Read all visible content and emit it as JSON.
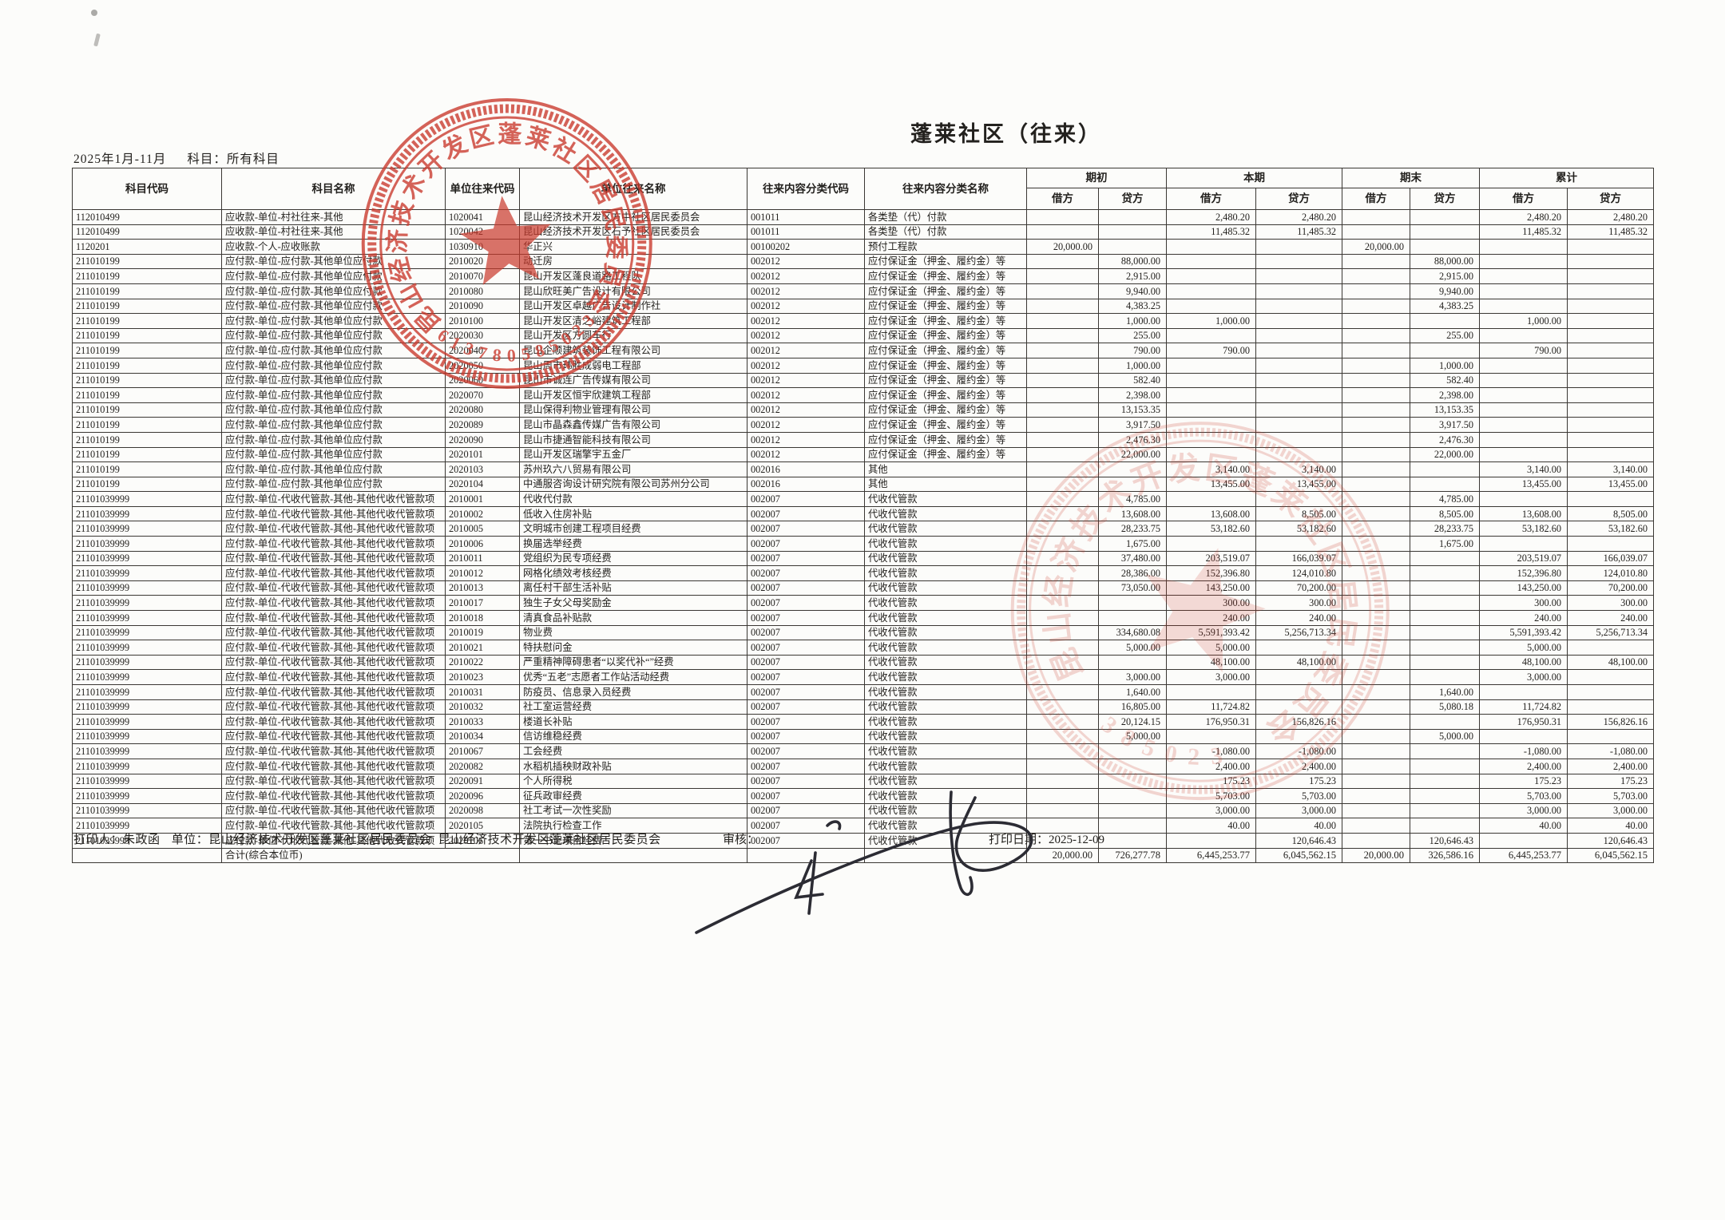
{
  "page": {
    "title": "蓬莱社区（往来）",
    "period": "2025年1月-11月",
    "subject_filter": "科目：所有科目"
  },
  "table": {
    "headers": {
      "static": [
        "科目代码",
        "科目名称",
        "单位往来代码",
        "单位往来名称",
        "往来内容分类代码",
        "往来内容分类名称"
      ],
      "groups": [
        {
          "label": "期初"
        },
        {
          "label": "本期"
        },
        {
          "label": "期末"
        },
        {
          "label": "累计"
        }
      ],
      "sub_debit": "借方",
      "sub_credit": "贷方"
    },
    "col_keys": [
      "subject-code",
      "subject-name",
      "unit-code",
      "unit-name",
      "class-code",
      "class-name",
      "opening-debit",
      "opening-credit",
      "current-debit",
      "current-credit",
      "ending-debit",
      "ending-credit",
      "cumulative-debit",
      "cumulative-credit"
    ],
    "rows": [
      [
        "112010499",
        "应收款-单位-村社往来-其他",
        "1020041",
        "昆山经济技术开发区方中社区居民委员会",
        "001011",
        "各类垫（代）付款",
        "",
        "",
        "2,480.20",
        "2,480.20",
        "",
        "",
        "2,480.20",
        "2,480.20"
      ],
      [
        "112010499",
        "应收款-单位-村社往来-其他",
        "1020042",
        "昆山经济技术开发区石予社区居民委员会",
        "001011",
        "各类垫（代）付款",
        "",
        "",
        "11,485.32",
        "11,485.32",
        "",
        "",
        "11,485.32",
        "11,485.32"
      ],
      [
        "1120201",
        "应收款-个人-应收账款",
        "1030910",
        "华正兴",
        "00100202",
        "预付工程款",
        "20,000.00",
        "",
        "",
        "",
        "20,000.00",
        "",
        "",
        ""
      ],
      [
        "211010199",
        "应付款-单位-应付款-其他单位应付款",
        "2010020",
        "动迁房",
        "002012",
        "应付保证金（押金、履约金）等",
        "",
        "88,000.00",
        "",
        "",
        "",
        "88,000.00",
        "",
        ""
      ],
      [
        "211010199",
        "应付款-单位-应付款-其他单位应付款",
        "2010070",
        "昆山开发区蓬良道路工程队",
        "002012",
        "应付保证金（押金、履约金）等",
        "",
        "2,915.00",
        "",
        "",
        "",
        "2,915.00",
        "",
        ""
      ],
      [
        "211010199",
        "应付款-单位-应付款-其他单位应付款",
        "2010080",
        "昆山欣旺美广告设计有限公司",
        "002012",
        "应付保证金（押金、履约金）等",
        "",
        "9,940.00",
        "",
        "",
        "",
        "9,940.00",
        "",
        ""
      ],
      [
        "211010199",
        "应付款-单位-应付款-其他单位应付款",
        "2010090",
        "昆山开发区卓越广告设计制作社",
        "002012",
        "应付保证金（押金、履约金）等",
        "",
        "4,383.25",
        "",
        "",
        "",
        "4,383.25",
        "",
        ""
      ],
      [
        "211010199",
        "应付款-单位-应付款-其他单位应付款",
        "2010100",
        "昆山开发区清之峪建筑工程部",
        "002012",
        "应付保证金（押金、履约金）等",
        "",
        "1,000.00",
        "1,000.00",
        "",
        "",
        "",
        "1,000.00",
        ""
      ],
      [
        "211010199",
        "应付款-单位-应付款-其他单位应付款",
        "2020030",
        "昆山开发区方圆车行",
        "002012",
        "应付保证金（押金、履约金）等",
        "",
        "255.00",
        "",
        "",
        "",
        "255.00",
        "",
        ""
      ],
      [
        "211010199",
        "应付款-单位-应付款-其他单位应付款",
        "2020040",
        "昆山企顺建筑装饰工程有限公司",
        "002012",
        "应付保证金（押金、履约金）等",
        "",
        "790.00",
        "790.00",
        "",
        "",
        "",
        "790.00",
        ""
      ],
      [
        "211010199",
        "应付款-单位-应付款-其他单位应付款",
        "2020050",
        "昆山周市玮胜成弱电工程部",
        "002012",
        "应付保证金（押金、履约金）等",
        "",
        "1,000.00",
        "",
        "",
        "",
        "1,000.00",
        "",
        ""
      ],
      [
        "211010199",
        "应付款-单位-应付款-其他单位应付款",
        "2020060",
        "昆山市诚连广告传媒有限公司",
        "002012",
        "应付保证金（押金、履约金）等",
        "",
        "582.40",
        "",
        "",
        "",
        "582.40",
        "",
        ""
      ],
      [
        "211010199",
        "应付款-单位-应付款-其他单位应付款",
        "2020070",
        "昆山开发区恒宇欣建筑工程部",
        "002012",
        "应付保证金（押金、履约金）等",
        "",
        "2,398.00",
        "",
        "",
        "",
        "2,398.00",
        "",
        ""
      ],
      [
        "211010199",
        "应付款-单位-应付款-其他单位应付款",
        "2020080",
        "昆山保得利物业管理有限公司",
        "002012",
        "应付保证金（押金、履约金）等",
        "",
        "13,153.35",
        "",
        "",
        "",
        "13,153.35",
        "",
        ""
      ],
      [
        "211010199",
        "应付款-单位-应付款-其他单位应付款",
        "2020089",
        "昆山市晶森鑫传媒广告有限公司",
        "002012",
        "应付保证金（押金、履约金）等",
        "",
        "3,917.50",
        "",
        "",
        "",
        "3,917.50",
        "",
        ""
      ],
      [
        "211010199",
        "应付款-单位-应付款-其他单位应付款",
        "2020090",
        "昆山市捷通智能科技有限公司",
        "002012",
        "应付保证金（押金、履约金）等",
        "",
        "2,476.30",
        "",
        "",
        "",
        "2,476.30",
        "",
        ""
      ],
      [
        "211010199",
        "应付款-单位-应付款-其他单位应付款",
        "2020101",
        "昆山开发区瑞擎宇五金厂",
        "002012",
        "应付保证金（押金、履约金）等",
        "",
        "22,000.00",
        "",
        "",
        "",
        "22,000.00",
        "",
        ""
      ],
      [
        "211010199",
        "应付款-单位-应付款-其他单位应付款",
        "2020103",
        "苏州玖六八贸易有限公司",
        "002016",
        "其他",
        "",
        "",
        "3,140.00",
        "3,140.00",
        "",
        "",
        "3,140.00",
        "3,140.00"
      ],
      [
        "211010199",
        "应付款-单位-应付款-其他单位应付款",
        "2020104",
        "中通服咨询设计研究院有限公司苏州分公司",
        "002016",
        "其他",
        "",
        "",
        "13,455.00",
        "13,455.00",
        "",
        "",
        "13,455.00",
        "13,455.00"
      ],
      [
        "21101039999",
        "应付款-单位-代收代管款-其他-其他代收代管款项",
        "2010001",
        "代收代付款",
        "002007",
        "代收代管款",
        "",
        "4,785.00",
        "",
        "",
        "",
        "4,785.00",
        "",
        ""
      ],
      [
        "21101039999",
        "应付款-单位-代收代管款-其他-其他代收代管款项",
        "2010002",
        "低收入住房补贴",
        "002007",
        "代收代管款",
        "",
        "13,608.00",
        "13,608.00",
        "8,505.00",
        "",
        "8,505.00",
        "13,608.00",
        "8,505.00"
      ],
      [
        "21101039999",
        "应付款-单位-代收代管款-其他-其他代收代管款项",
        "2010005",
        "文明城市创建工程项目经费",
        "002007",
        "代收代管款",
        "",
        "28,233.75",
        "53,182.60",
        "53,182.60",
        "",
        "28,233.75",
        "53,182.60",
        "53,182.60"
      ],
      [
        "21101039999",
        "应付款-单位-代收代管款-其他-其他代收代管款项",
        "2010006",
        "换届选举经费",
        "002007",
        "代收代管款",
        "",
        "1,675.00",
        "",
        "",
        "",
        "1,675.00",
        "",
        ""
      ],
      [
        "21101039999",
        "应付款-单位-代收代管款-其他-其他代收代管款项",
        "2010011",
        "党组织为民专项经费",
        "002007",
        "代收代管款",
        "",
        "37,480.00",
        "203,519.07",
        "166,039.07",
        "",
        "",
        "203,519.07",
        "166,039.07"
      ],
      [
        "21101039999",
        "应付款-单位-代收代管款-其他-其他代收代管款项",
        "2010012",
        "网格化绩效考核经费",
        "002007",
        "代收代管款",
        "",
        "28,386.00",
        "152,396.80",
        "124,010.80",
        "",
        "",
        "152,396.80",
        "124,010.80"
      ],
      [
        "21101039999",
        "应付款-单位-代收代管款-其他-其他代收代管款项",
        "2010013",
        "离任村干部生活补贴",
        "002007",
        "代收代管款",
        "",
        "73,050.00",
        "143,250.00",
        "70,200.00",
        "",
        "",
        "143,250.00",
        "70,200.00"
      ],
      [
        "21101039999",
        "应付款-单位-代收代管款-其他-其他代收代管款项",
        "2010017",
        "独生子女父母奖励金",
        "002007",
        "代收代管款",
        "",
        "",
        "300.00",
        "300.00",
        "",
        "",
        "300.00",
        "300.00"
      ],
      [
        "21101039999",
        "应付款-单位-代收代管款-其他-其他代收代管款项",
        "2010018",
        "清真食品补贴款",
        "002007",
        "代收代管款",
        "",
        "",
        "240.00",
        "240.00",
        "",
        "",
        "240.00",
        "240.00"
      ],
      [
        "21101039999",
        "应付款-单位-代收代管款-其他-其他代收代管款项",
        "2010019",
        "物业费",
        "002007",
        "代收代管款",
        "",
        "334,680.08",
        "5,591,393.42",
        "5,256,713.34",
        "",
        "",
        "5,591,393.42",
        "5,256,713.34"
      ],
      [
        "21101039999",
        "应付款-单位-代收代管款-其他-其他代收代管款项",
        "2010021",
        "特扶慰问金",
        "002007",
        "代收代管款",
        "",
        "5,000.00",
        "5,000.00",
        "",
        "",
        "",
        "5,000.00",
        ""
      ],
      [
        "21101039999",
        "应付款-单位-代收代管款-其他-其他代收代管款项",
        "2010022",
        "严重精神障碍患者“以奖代补“”经费",
        "002007",
        "代收代管款",
        "",
        "",
        "48,100.00",
        "48,100.00",
        "",
        "",
        "48,100.00",
        "48,100.00"
      ],
      [
        "21101039999",
        "应付款-单位-代收代管款-其他-其他代收代管款项",
        "2010023",
        "优秀“五老”志愿者工作站活动经费",
        "002007",
        "代收代管款",
        "",
        "3,000.00",
        "3,000.00",
        "",
        "",
        "",
        "3,000.00",
        ""
      ],
      [
        "21101039999",
        "应付款-单位-代收代管款-其他-其他代收代管款项",
        "2010031",
        "防疫员、信息录入员经费",
        "002007",
        "代收代管款",
        "",
        "1,640.00",
        "",
        "",
        "",
        "1,640.00",
        "",
        ""
      ],
      [
        "21101039999",
        "应付款-单位-代收代管款-其他-其他代收代管款项",
        "2010032",
        "社工室运营经费",
        "002007",
        "代收代管款",
        "",
        "16,805.00",
        "11,724.82",
        "",
        "",
        "5,080.18",
        "11,724.82",
        ""
      ],
      [
        "21101039999",
        "应付款-单位-代收代管款-其他-其他代收代管款项",
        "2010033",
        "楼道长补贴",
        "002007",
        "代收代管款",
        "",
        "20,124.15",
        "176,950.31",
        "156,826.16",
        "",
        "",
        "176,950.31",
        "156,826.16"
      ],
      [
        "21101039999",
        "应付款-单位-代收代管款-其他-其他代收代管款项",
        "2010034",
        "信访维稳经费",
        "002007",
        "代收代管款",
        "",
        "5,000.00",
        "",
        "",
        "",
        "5,000.00",
        "",
        ""
      ],
      [
        "21101039999",
        "应付款-单位-代收代管款-其他-其他代收代管款项",
        "2010067",
        "工会经费",
        "002007",
        "代收代管款",
        "",
        "",
        "-1,080.00",
        "-1,080.00",
        "",
        "",
        "-1,080.00",
        "-1,080.00"
      ],
      [
        "21101039999",
        "应付款-单位-代收代管款-其他-其他代收代管款项",
        "2020082",
        "水稻机插秧财政补贴",
        "002007",
        "代收代管款",
        "",
        "",
        "2,400.00",
        "2,400.00",
        "",
        "",
        "2,400.00",
        "2,400.00"
      ],
      [
        "21101039999",
        "应付款-单位-代收代管款-其他-其他代收代管款项",
        "2020091",
        "个人所得税",
        "002007",
        "代收代管款",
        "",
        "",
        "175.23",
        "175.23",
        "",
        "",
        "175.23",
        "175.23"
      ],
      [
        "21101039999",
        "应付款-单位-代收代管款-其他-其他代收代管款项",
        "2020096",
        "征兵政审经费",
        "002007",
        "代收代管款",
        "",
        "",
        "5,703.00",
        "5,703.00",
        "",
        "",
        "5,703.00",
        "5,703.00"
      ],
      [
        "21101039999",
        "应付款-单位-代收代管款-其他-其他代收代管款项",
        "2020098",
        "社工考试一次性奖励",
        "002007",
        "代收代管款",
        "",
        "",
        "3,000.00",
        "3,000.00",
        "",
        "",
        "3,000.00",
        "3,000.00"
      ],
      [
        "21101039999",
        "应付款-单位-代收代管款-其他-其他代收代管款项",
        "2020105",
        "法院执行检查工作",
        "002007",
        "代收代管款",
        "",
        "",
        "40.00",
        "40.00",
        "",
        "",
        "40.00",
        "40.00"
      ],
      [
        "21101039999",
        "应付款-单位-代收代管款-其他-其他代收代管款项",
        "2020106",
        "第一书记项目经费",
        "002007",
        "代收代管款",
        "",
        "",
        "",
        "120,646.43",
        "",
        "120,646.43",
        "",
        "120,646.43"
      ]
    ],
    "total": {
      "label": "合计(综合本位币)",
      "values": [
        "20,000.00",
        "726,277.78",
        "6,445,253.77",
        "6,045,562.15",
        "20,000.00",
        "326,586.16",
        "6,445,253.77",
        "6,045,562.15"
      ]
    }
  },
  "footer": {
    "printer_label": "打印人：",
    "printer": "朱政函",
    "unit_label": "单位：",
    "unit1": "昆山经济技术开发区蓬莱社区居民委员会",
    "unit2": "昆山经济技术开发区蓬莱社区居民委员会",
    "review_label": "审核：",
    "print_date_label": "打印日期：",
    "print_date": "2025-12-09"
  },
  "stamps": {
    "main": {
      "ring_text": "昆山经济技术开发区蓬莱社区居民委员会",
      "number": "320585087316",
      "color": "#c9382b"
    },
    "secondary": {
      "ring_text": "昆山经济技术开发区蓬莱社区居民委员会",
      "number": "320583",
      "color": "#c9382b"
    }
  }
}
